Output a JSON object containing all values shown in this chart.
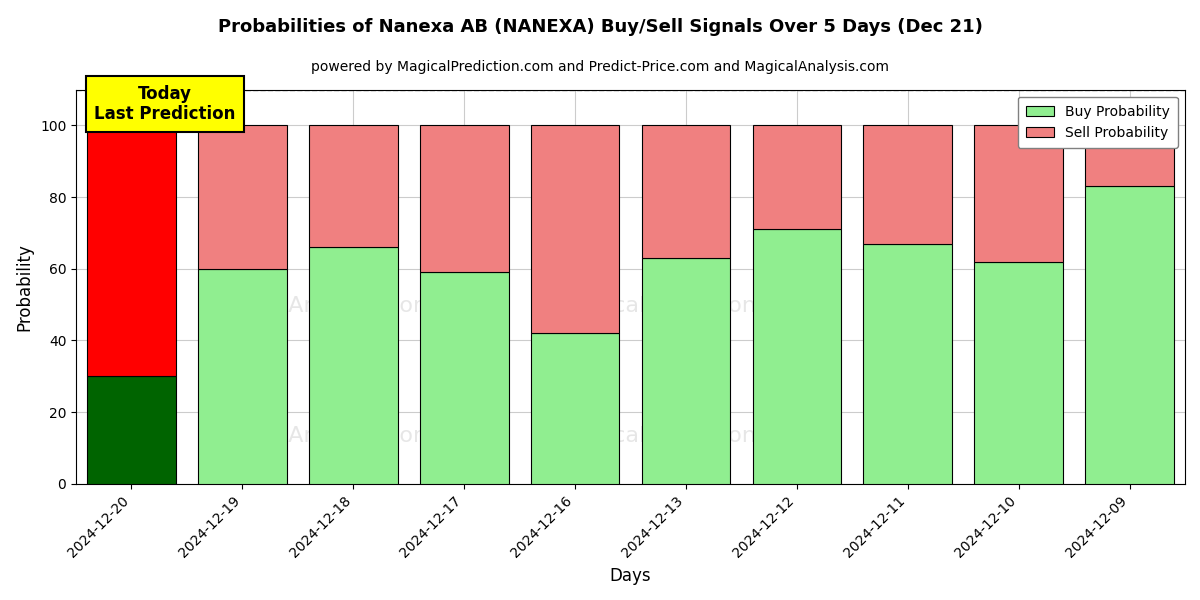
{
  "title": "Probabilities of Nanexa AB (NANEXA) Buy/Sell Signals Over 5 Days (Dec 21)",
  "subtitle": "powered by MagicalPrediction.com and Predict-Price.com and MagicalAnalysis.com",
  "xlabel": "Days",
  "ylabel": "Probability",
  "days": [
    "2024-12-20",
    "2024-12-19",
    "2024-12-18",
    "2024-12-17",
    "2024-12-16",
    "2024-12-13",
    "2024-12-12",
    "2024-12-11",
    "2024-12-10",
    "2024-12-09"
  ],
  "buy_values": [
    30,
    60,
    66,
    59,
    42,
    63,
    71,
    67,
    62,
    83
  ],
  "sell_values": [
    70,
    40,
    34,
    41,
    58,
    37,
    29,
    33,
    38,
    17
  ],
  "today_idx": 0,
  "buy_color_today": "#006400",
  "sell_color_today": "#FF0000",
  "buy_color_normal": "#90EE90",
  "sell_color_normal": "#F08080",
  "today_annotation_text": "Today\nLast Prediction",
  "today_annotation_bg": "#FFFF00",
  "ylim": [
    0,
    110
  ],
  "yticks": [
    0,
    20,
    40,
    60,
    80,
    100
  ],
  "dashed_line_y": 110,
  "legend_buy_label": "Buy Probability",
  "legend_sell_label": "Sell Probability",
  "bar_width": 0.8,
  "grid_color": "#cccccc",
  "background_color": "#ffffff",
  "fig_width": 12.0,
  "fig_height": 6.0,
  "dpi": 100
}
